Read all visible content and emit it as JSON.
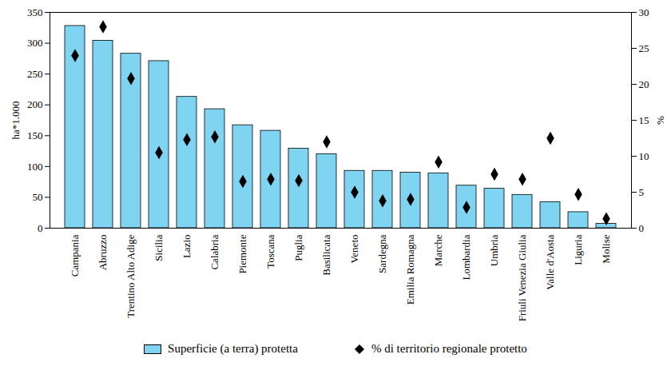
{
  "chart_data": {
    "type": "bar",
    "categories": [
      "Campania",
      "Abruzzo",
      "Trentino Alto Adige",
      "Sicilia",
      "Lazio",
      "Calabria",
      "Piemonte",
      "Toscana",
      "Puglia",
      "Basilicata",
      "Veneto",
      "Sardegna",
      "Emilia Romagna",
      "Marche",
      "Lombardia",
      "Umbria",
      "Friuli Venezia Giulia",
      "Valle d'Aosta",
      "Liguria",
      "Molise"
    ],
    "series": [
      {
        "name": "Superficie (a terra) protetta",
        "type": "bar",
        "color": "#7fd4f2",
        "values": [
          328,
          304,
          283,
          271,
          213,
          193,
          167,
          158,
          129,
          120,
          93,
          93,
          90,
          89,
          69,
          64,
          54,
          42,
          26,
          7
        ]
      },
      {
        "name": "% di territorio regionale protetto",
        "type": "scatter",
        "marker": "diamond",
        "color": "#000000",
        "axis": "y2",
        "values": [
          24,
          28,
          20.8,
          10.5,
          12.3,
          12.7,
          6.5,
          6.8,
          6.6,
          12,
          5,
          3.8,
          4,
          9.2,
          2.9,
          7.5,
          6.8,
          12.5,
          4.7,
          1.3
        ]
      }
    ],
    "ylabel": "ha*1.000",
    "y2label": "%",
    "ylim": [
      0,
      350
    ],
    "yticks": [
      0,
      50,
      100,
      150,
      200,
      250,
      300,
      350
    ],
    "y2lim": [
      0,
      30
    ],
    "y2ticks": [
      0,
      5,
      10,
      15,
      20,
      25,
      30
    ],
    "legend": "bottom",
    "grid": false
  }
}
